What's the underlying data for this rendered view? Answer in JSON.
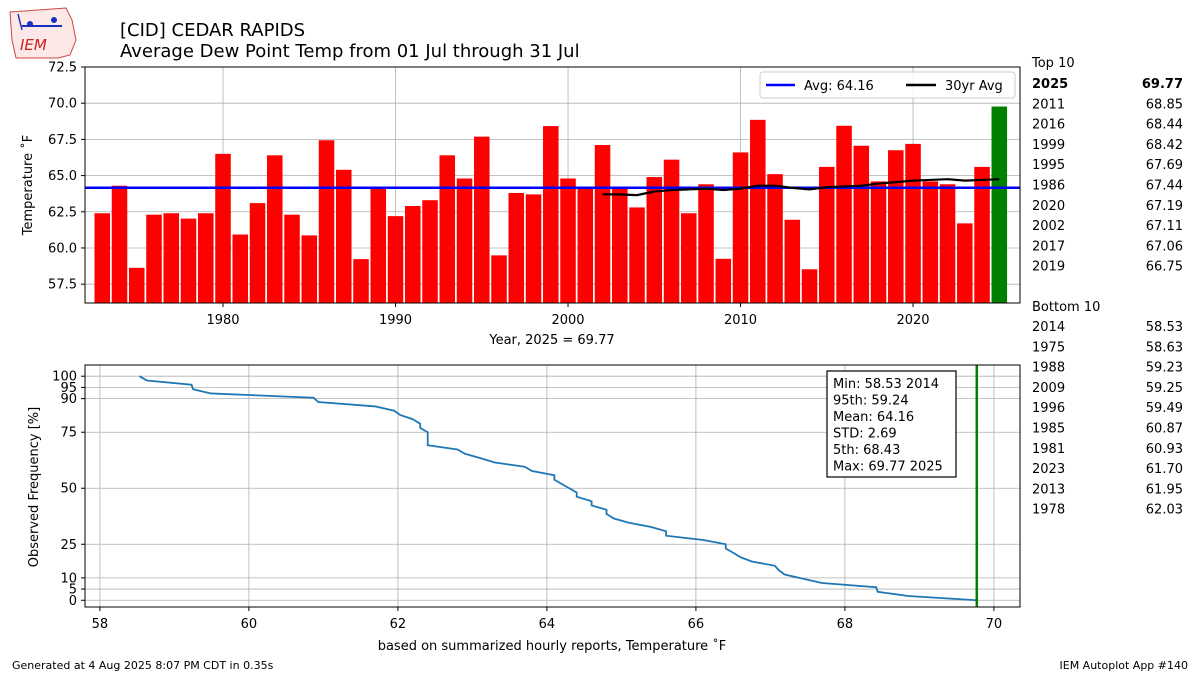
{
  "header": {
    "title_line1": "[CID] CEDAR RAPIDS",
    "title_line2": "Average Dew Point Temp from 01 Jul through 31 Jul",
    "logo_text": "IEM"
  },
  "footer": {
    "left": "Generated at 4 Aug 2025 8:07 PM CDT in 0.35s",
    "right": "IEM Autoplot App #140"
  },
  "sidebar": {
    "top_title": "Top 10",
    "top": [
      {
        "year": "2025",
        "value": "69.77",
        "bold": true
      },
      {
        "year": "2011",
        "value": "68.85"
      },
      {
        "year": "2016",
        "value": "68.44"
      },
      {
        "year": "1999",
        "value": "68.42"
      },
      {
        "year": "1995",
        "value": "67.69"
      },
      {
        "year": "1986",
        "value": "67.44"
      },
      {
        "year": "2020",
        "value": "67.19"
      },
      {
        "year": "2002",
        "value": "67.11"
      },
      {
        "year": "2017",
        "value": "67.06"
      },
      {
        "year": "2019",
        "value": "66.75"
      }
    ],
    "bottom_title": "Bottom 10",
    "bottom": [
      {
        "year": "2014",
        "value": "58.53"
      },
      {
        "year": "1975",
        "value": "58.63"
      },
      {
        "year": "1988",
        "value": "59.23"
      },
      {
        "year": "2009",
        "value": "59.25"
      },
      {
        "year": "1996",
        "value": "59.49"
      },
      {
        "year": "1985",
        "value": "60.87"
      },
      {
        "year": "1981",
        "value": "60.93"
      },
      {
        "year": "2023",
        "value": "61.70"
      },
      {
        "year": "2013",
        "value": "61.95"
      },
      {
        "year": "1978",
        "value": "62.03"
      }
    ]
  },
  "chart_data": [
    {
      "type": "bar",
      "xlabel": "Year, 2025 = 69.77",
      "ylabel": "Temperature ˚F",
      "xlim": [
        1972,
        2026.2
      ],
      "ylim": [
        56.2,
        72.5
      ],
      "xticks": [
        1980,
        1990,
        2000,
        2010,
        2020
      ],
      "yticks": [
        57.5,
        60.0,
        62.5,
        65.0,
        67.5,
        70.0,
        72.5
      ],
      "grid": true,
      "legend_position": "top-right",
      "colors": {
        "bar": "#ff0000",
        "current_bar": "#008000",
        "avg_line": "#0000ff",
        "avg30_line": "#000000",
        "grid": "#b0b0b0"
      },
      "years": [
        1973,
        1974,
        1975,
        1976,
        1977,
        1978,
        1979,
        1980,
        1981,
        1982,
        1983,
        1984,
        1985,
        1986,
        1987,
        1988,
        1989,
        1990,
        1991,
        1992,
        1993,
        1994,
        1995,
        1996,
        1997,
        1998,
        1999,
        2000,
        2001,
        2002,
        2003,
        2004,
        2005,
        2006,
        2007,
        2008,
        2009,
        2010,
        2011,
        2012,
        2013,
        2014,
        2015,
        2016,
        2017,
        2018,
        2019,
        2020,
        2021,
        2022,
        2023,
        2024,
        2025
      ],
      "values": [
        62.4,
        64.3,
        58.63,
        62.3,
        62.4,
        62.03,
        62.4,
        66.5,
        60.93,
        63.1,
        66.4,
        62.3,
        60.87,
        67.44,
        65.4,
        59.23,
        64.1,
        62.2,
        62.9,
        63.3,
        66.4,
        64.8,
        67.69,
        59.49,
        63.8,
        63.7,
        68.42,
        64.8,
        64.2,
        67.11,
        64.1,
        62.8,
        64.9,
        66.1,
        62.4,
        64.4,
        59.25,
        66.6,
        68.85,
        65.1,
        61.95,
        58.53,
        65.6,
        68.44,
        67.06,
        64.6,
        66.75,
        67.19,
        64.6,
        64.4,
        61.7,
        65.6,
        69.77
      ],
      "highlight_year": 2025,
      "series": [
        {
          "name": "Avg: 64.16",
          "type": "hline",
          "value": 64.16
        },
        {
          "name": "30yr Avg",
          "type": "line",
          "x": [
            2002,
            2003,
            2004,
            2005,
            2006,
            2007,
            2008,
            2009,
            2010,
            2011,
            2012,
            2013,
            2014,
            2015,
            2016,
            2017,
            2018,
            2019,
            2020,
            2021,
            2022,
            2023,
            2024,
            2025
          ],
          "y": [
            63.7,
            63.7,
            63.65,
            63.9,
            64.0,
            64.05,
            64.1,
            64.0,
            64.1,
            64.3,
            64.3,
            64.15,
            64.05,
            64.2,
            64.25,
            64.3,
            64.45,
            64.55,
            64.65,
            64.7,
            64.75,
            64.65,
            64.7,
            64.75
          ]
        }
      ]
    },
    {
      "type": "line",
      "xlabel": "based on summarized hourly reports, Temperature ˚F",
      "ylabel": "Observed Frequency [%]",
      "xlim": [
        57.8,
        70.35
      ],
      "ylim": [
        -3,
        105
      ],
      "xticks": [
        58,
        60,
        62,
        64,
        66,
        68,
        70
      ],
      "yticks": [
        0,
        5,
        10,
        25,
        50,
        75,
        90,
        95,
        100
      ],
      "grid": true,
      "colors": {
        "line": "#1f77b4",
        "vline": "#008000"
      },
      "vline": 69.77,
      "stats": [
        "Min: 58.53 2014",
        "95th: 59.24",
        "Mean: 64.16",
        "STD: 2.69",
        "5th: 68.43",
        "Max: 69.77 2025"
      ],
      "x": [
        58.53,
        58.63,
        59.23,
        59.25,
        59.49,
        60.87,
        60.93,
        61.7,
        61.95,
        62.03,
        62.2,
        62.3,
        62.3,
        62.4,
        62.4,
        62.4,
        62.4,
        62.8,
        62.9,
        63.1,
        63.3,
        63.7,
        63.8,
        64.1,
        64.1,
        64.2,
        64.3,
        64.4,
        64.4,
        64.6,
        64.6,
        64.8,
        64.8,
        64.9,
        65.1,
        65.4,
        65.6,
        65.6,
        66.1,
        66.4,
        66.4,
        66.5,
        66.6,
        66.75,
        67.06,
        67.11,
        67.19,
        67.44,
        67.69,
        68.42,
        68.44,
        68.85,
        69.77
      ],
      "y": [
        100,
        98.1,
        96.2,
        94.2,
        92.3,
        90.4,
        88.5,
        86.5,
        84.6,
        82.7,
        80.8,
        78.8,
        76.9,
        75.0,
        73.1,
        71.2,
        69.2,
        67.3,
        65.4,
        63.5,
        61.5,
        59.6,
        57.7,
        55.8,
        53.8,
        51.9,
        50.0,
        48.1,
        46.2,
        44.2,
        42.3,
        40.4,
        38.5,
        36.5,
        34.6,
        32.7,
        30.8,
        28.8,
        26.9,
        25.0,
        23.1,
        21.2,
        19.2,
        17.3,
        15.4,
        13.5,
        11.5,
        9.6,
        7.7,
        5.8,
        3.8,
        1.9,
        0
      ]
    }
  ]
}
